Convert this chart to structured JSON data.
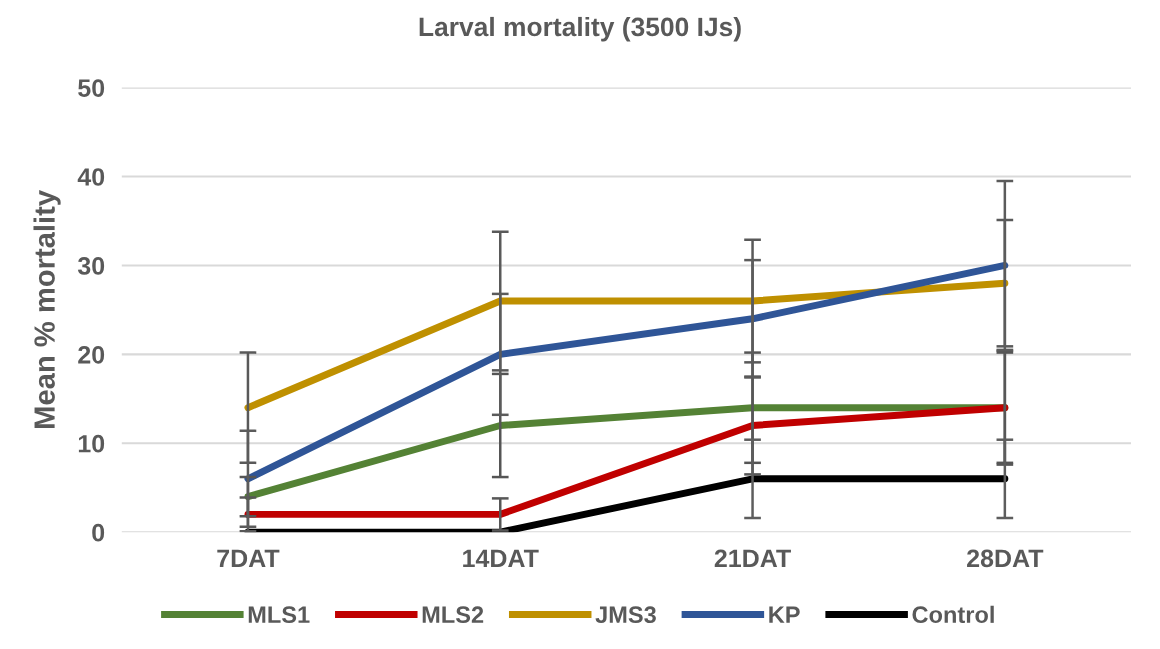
{
  "chart_data": {
    "type": "line",
    "title": "Larval mortality (3500 IJs)",
    "ylabel": "Mean % mortality",
    "categories": [
      "7DAT",
      "14DAT",
      "21DAT",
      "28DAT"
    ],
    "ylim": [
      0,
      50
    ],
    "yticks": [
      0,
      10,
      20,
      30,
      40,
      50
    ],
    "grid": "y",
    "legend": "bottom",
    "marker": "none",
    "line_style": "solid",
    "series": [
      {
        "name": "MLS1",
        "color": "#548235",
        "values": [
          4,
          12,
          14,
          14
        ],
        "errors": [
          2.2,
          5.8,
          6.2,
          6.2
        ]
      },
      {
        "name": "MLS2",
        "color": "#c00000",
        "values": [
          2,
          2,
          12,
          14
        ],
        "errors": [
          1.9,
          1.8,
          5.5,
          6.4
        ]
      },
      {
        "name": "JMS3",
        "color": "#bf9000",
        "values": [
          14,
          26,
          26,
          28
        ],
        "errors": [
          6.2,
          7.8,
          6.9,
          7.1
        ]
      },
      {
        "name": "KP",
        "color": "#2f5597",
        "values": [
          6,
          20,
          24,
          30
        ],
        "errors": [
          5.4,
          6.8,
          6.6,
          9.5
        ]
      },
      {
        "name": "Control",
        "color": "#000000",
        "values": [
          0,
          0,
          6,
          6
        ],
        "errors": [
          0,
          0,
          4.4,
          4.4
        ]
      }
    ]
  }
}
